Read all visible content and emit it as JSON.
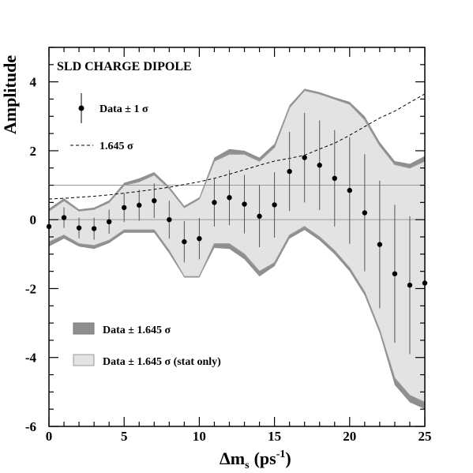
{
  "chart_data": {
    "type": "scatter",
    "title": "SLD CHARGE DIPOLE",
    "xlabel": "Δm",
    "xlabel_sub": "s",
    "xlabel_unit": "(ps",
    "xlabel_sup": "-1",
    "xlabel_close": ")",
    "ylabel": "Amplitude",
    "xlim": [
      0,
      25
    ],
    "ylim": [
      -6,
      5
    ],
    "x_ticks": [
      0,
      5,
      10,
      15,
      20,
      25
    ],
    "y_ticks": [
      -6,
      -4,
      -2,
      0,
      2,
      4
    ],
    "reference_lines": [
      0,
      1
    ],
    "series": [
      {
        "name": "Data ± 1 σ",
        "kind": "points_with_errorbars",
        "x": [
          0,
          1,
          2,
          3,
          4,
          5,
          6,
          7,
          8,
          9,
          10,
          11,
          12,
          13,
          14,
          15,
          16,
          17,
          18,
          19,
          20,
          21,
          22,
          23,
          24,
          25
        ],
        "y": [
          -0.2,
          0.06,
          -0.24,
          -0.26,
          -0.06,
          0.35,
          0.42,
          0.55,
          0.0,
          -0.64,
          -0.55,
          0.5,
          0.64,
          0.45,
          0.1,
          0.43,
          1.4,
          1.8,
          1.58,
          1.2,
          0.85,
          0.2,
          -0.72,
          -1.57,
          -1.9,
          -1.84
        ],
        "err": [
          0.28,
          0.3,
          0.3,
          0.32,
          0.35,
          0.42,
          0.45,
          0.5,
          0.55,
          0.6,
          0.6,
          0.7,
          0.8,
          0.85,
          0.9,
          0.95,
          1.15,
          1.3,
          1.3,
          1.4,
          1.55,
          1.7,
          1.85,
          2.0,
          2.0,
          2.0
        ]
      },
      {
        "name": "1.645 σ",
        "kind": "dashed_line",
        "x": [
          0,
          1,
          2,
          3,
          4,
          5,
          6,
          7,
          8,
          9,
          10,
          11,
          12,
          13,
          14,
          15,
          16,
          17,
          18,
          19,
          20,
          21,
          22,
          23,
          24,
          25
        ],
        "y": [
          0.6,
          0.62,
          0.65,
          0.68,
          0.72,
          0.77,
          0.82,
          0.88,
          0.94,
          1.02,
          1.1,
          1.2,
          1.32,
          1.45,
          1.58,
          1.7,
          1.78,
          1.87,
          2.05,
          2.22,
          2.45,
          2.7,
          2.95,
          3.15,
          3.4,
          3.65
        ]
      },
      {
        "name": "Data ± 1.645 σ (stat only)",
        "kind": "band",
        "color": "#e3e3e3",
        "x": [
          0,
          1,
          2,
          3,
          4,
          5,
          6,
          7,
          8,
          9,
          10,
          11,
          12,
          13,
          14,
          15,
          16,
          17,
          18,
          19,
          20,
          21,
          22,
          23,
          24,
          25
        ],
        "upper": [
          0.25,
          0.55,
          0.25,
          0.3,
          0.5,
          1.0,
          1.1,
          1.3,
          0.9,
          0.35,
          0.6,
          1.7,
          1.9,
          1.9,
          1.7,
          2.1,
          3.25,
          3.75,
          3.65,
          3.5,
          3.35,
          2.9,
          2.15,
          1.6,
          1.5,
          1.7
        ],
        "lower": [
          -0.65,
          -0.45,
          -0.7,
          -0.75,
          -0.6,
          -0.3,
          -0.3,
          -0.3,
          -0.9,
          -1.65,
          -1.65,
          -0.7,
          -0.7,
          -1.0,
          -1.5,
          -1.25,
          -0.45,
          -0.2,
          -0.5,
          -0.9,
          -1.4,
          -2.1,
          -3.2,
          -4.6,
          -5.1,
          -5.3
        ]
      },
      {
        "name": "Data ± 1.645 σ",
        "kind": "band",
        "color": "#8f8f8f",
        "x": [
          0,
          1,
          2,
          3,
          4,
          5,
          6,
          7,
          8,
          9,
          10,
          11,
          12,
          13,
          14,
          15,
          16,
          17,
          18,
          19,
          20,
          21,
          22,
          23,
          24,
          25
        ],
        "upper": [
          0.32,
          0.62,
          0.3,
          0.35,
          0.56,
          1.07,
          1.2,
          1.38,
          0.96,
          0.4,
          0.65,
          1.8,
          2.05,
          2.0,
          1.8,
          2.2,
          3.32,
          3.8,
          3.7,
          3.55,
          3.42,
          3.0,
          2.25,
          1.7,
          1.62,
          1.85
        ],
        "lower": [
          -0.78,
          -0.55,
          -0.78,
          -0.85,
          -0.68,
          -0.38,
          -0.38,
          -0.38,
          -0.98,
          -1.68,
          -1.68,
          -0.82,
          -0.85,
          -1.15,
          -1.65,
          -1.35,
          -0.55,
          -0.3,
          -0.6,
          -1.0,
          -1.5,
          -2.2,
          -3.3,
          -4.8,
          -5.3,
          -5.5
        ]
      }
    ],
    "legend": {
      "top": [
        {
          "label": "Data ± 1 σ",
          "symbol": "point_errorbar"
        },
        {
          "label": "1.645 σ",
          "symbol": "dashed"
        }
      ],
      "bottom": [
        {
          "label": "Data ± 1.645 σ",
          "symbol": "dark_box"
        },
        {
          "label": "Data ± 1.645 σ (stat only)",
          "symbol": "light_box"
        }
      ]
    },
    "colors": {
      "light_band": "#e3e3e3",
      "dark_band": "#8f8f8f",
      "band_edge": "#9a9a9a",
      "points": "#000000",
      "reference_line": "#999999"
    }
  }
}
